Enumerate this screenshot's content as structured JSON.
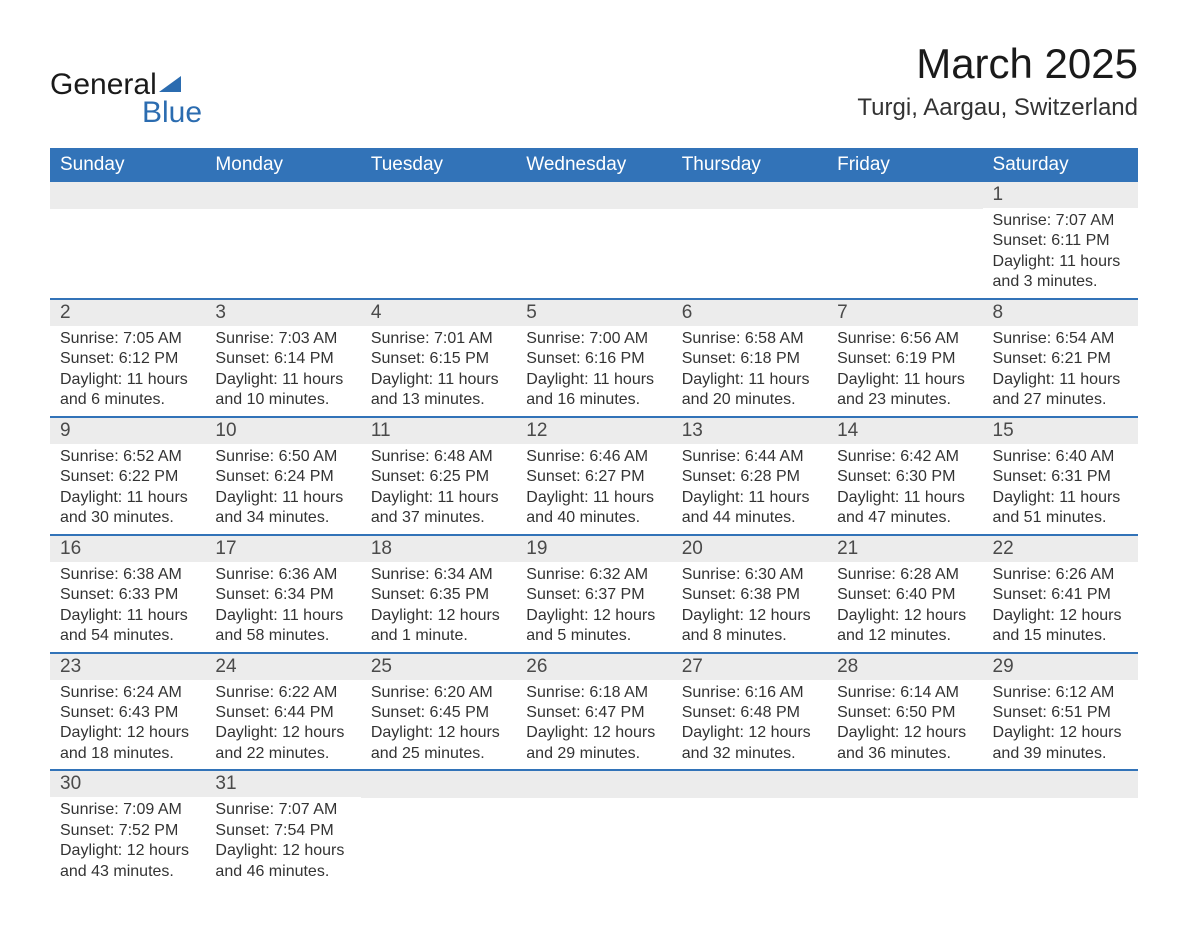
{
  "logo": {
    "word1": "General",
    "word2": "Blue"
  },
  "title": "March 2025",
  "location": "Turgi, Aargau, Switzerland",
  "colors": {
    "header_bg": "#3273b8",
    "header_text": "#ffffff",
    "daynum_bg": "#ececec",
    "row_border": "#3273b8",
    "body_text": "#333333",
    "logo_accent": "#2b6cb0"
  },
  "fonts": {
    "title_size_pt": 32,
    "location_size_pt": 18,
    "dayheader_size_pt": 14,
    "body_size_pt": 12
  },
  "day_headers": [
    "Sunday",
    "Monday",
    "Tuesday",
    "Wednesday",
    "Thursday",
    "Friday",
    "Saturday"
  ],
  "weeks": [
    [
      null,
      null,
      null,
      null,
      null,
      null,
      {
        "n": "1",
        "sunrise": "7:07 AM",
        "sunset": "6:11 PM",
        "daylight": "11 hours and 3 minutes."
      }
    ],
    [
      {
        "n": "2",
        "sunrise": "7:05 AM",
        "sunset": "6:12 PM",
        "daylight": "11 hours and 6 minutes."
      },
      {
        "n": "3",
        "sunrise": "7:03 AM",
        "sunset": "6:14 PM",
        "daylight": "11 hours and 10 minutes."
      },
      {
        "n": "4",
        "sunrise": "7:01 AM",
        "sunset": "6:15 PM",
        "daylight": "11 hours and 13 minutes."
      },
      {
        "n": "5",
        "sunrise": "7:00 AM",
        "sunset": "6:16 PM",
        "daylight": "11 hours and 16 minutes."
      },
      {
        "n": "6",
        "sunrise": "6:58 AM",
        "sunset": "6:18 PM",
        "daylight": "11 hours and 20 minutes."
      },
      {
        "n": "7",
        "sunrise": "6:56 AM",
        "sunset": "6:19 PM",
        "daylight": "11 hours and 23 minutes."
      },
      {
        "n": "8",
        "sunrise": "6:54 AM",
        "sunset": "6:21 PM",
        "daylight": "11 hours and 27 minutes."
      }
    ],
    [
      {
        "n": "9",
        "sunrise": "6:52 AM",
        "sunset": "6:22 PM",
        "daylight": "11 hours and 30 minutes."
      },
      {
        "n": "10",
        "sunrise": "6:50 AM",
        "sunset": "6:24 PM",
        "daylight": "11 hours and 34 minutes."
      },
      {
        "n": "11",
        "sunrise": "6:48 AM",
        "sunset": "6:25 PM",
        "daylight": "11 hours and 37 minutes."
      },
      {
        "n": "12",
        "sunrise": "6:46 AM",
        "sunset": "6:27 PM",
        "daylight": "11 hours and 40 minutes."
      },
      {
        "n": "13",
        "sunrise": "6:44 AM",
        "sunset": "6:28 PM",
        "daylight": "11 hours and 44 minutes."
      },
      {
        "n": "14",
        "sunrise": "6:42 AM",
        "sunset": "6:30 PM",
        "daylight": "11 hours and 47 minutes."
      },
      {
        "n": "15",
        "sunrise": "6:40 AM",
        "sunset": "6:31 PM",
        "daylight": "11 hours and 51 minutes."
      }
    ],
    [
      {
        "n": "16",
        "sunrise": "6:38 AM",
        "sunset": "6:33 PM",
        "daylight": "11 hours and 54 minutes."
      },
      {
        "n": "17",
        "sunrise": "6:36 AM",
        "sunset": "6:34 PM",
        "daylight": "11 hours and 58 minutes."
      },
      {
        "n": "18",
        "sunrise": "6:34 AM",
        "sunset": "6:35 PM",
        "daylight": "12 hours and 1 minute."
      },
      {
        "n": "19",
        "sunrise": "6:32 AM",
        "sunset": "6:37 PM",
        "daylight": "12 hours and 5 minutes."
      },
      {
        "n": "20",
        "sunrise": "6:30 AM",
        "sunset": "6:38 PM",
        "daylight": "12 hours and 8 minutes."
      },
      {
        "n": "21",
        "sunrise": "6:28 AM",
        "sunset": "6:40 PM",
        "daylight": "12 hours and 12 minutes."
      },
      {
        "n": "22",
        "sunrise": "6:26 AM",
        "sunset": "6:41 PM",
        "daylight": "12 hours and 15 minutes."
      }
    ],
    [
      {
        "n": "23",
        "sunrise": "6:24 AM",
        "sunset": "6:43 PM",
        "daylight": "12 hours and 18 minutes."
      },
      {
        "n": "24",
        "sunrise": "6:22 AM",
        "sunset": "6:44 PM",
        "daylight": "12 hours and 22 minutes."
      },
      {
        "n": "25",
        "sunrise": "6:20 AM",
        "sunset": "6:45 PM",
        "daylight": "12 hours and 25 minutes."
      },
      {
        "n": "26",
        "sunrise": "6:18 AM",
        "sunset": "6:47 PM",
        "daylight": "12 hours and 29 minutes."
      },
      {
        "n": "27",
        "sunrise": "6:16 AM",
        "sunset": "6:48 PM",
        "daylight": "12 hours and 32 minutes."
      },
      {
        "n": "28",
        "sunrise": "6:14 AM",
        "sunset": "6:50 PM",
        "daylight": "12 hours and 36 minutes."
      },
      {
        "n": "29",
        "sunrise": "6:12 AM",
        "sunset": "6:51 PM",
        "daylight": "12 hours and 39 minutes."
      }
    ],
    [
      {
        "n": "30",
        "sunrise": "7:09 AM",
        "sunset": "7:52 PM",
        "daylight": "12 hours and 43 minutes."
      },
      {
        "n": "31",
        "sunrise": "7:07 AM",
        "sunset": "7:54 PM",
        "daylight": "12 hours and 46 minutes."
      },
      null,
      null,
      null,
      null,
      null
    ]
  ],
  "labels": {
    "sunrise": "Sunrise: ",
    "sunset": "Sunset: ",
    "daylight": "Daylight: "
  }
}
